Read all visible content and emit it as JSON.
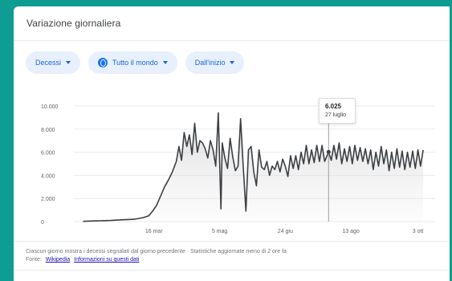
{
  "card": {
    "title": "Variazione giornaliera"
  },
  "filters": {
    "metric": "Decessi",
    "region": "Tutto il mondo",
    "period": "Dall'inizio"
  },
  "tooltip": {
    "value": "6.025",
    "date": "27 luglio"
  },
  "footnote": {
    "text": "Ciascun giorno mostra i decessi segnalati dal giorno precedente · Statistiche aggiornate meno di 2 ore fa",
    "source_label": "Fonte:",
    "source_link": "Wikipedia",
    "about_link": "Informazioni su questi dati"
  },
  "colors": {
    "accent": "#1a73e8",
    "chip_bg": "#e8f0fe",
    "line": "#3c4043",
    "page_bg": "#0f9c93"
  },
  "chart_data": {
    "type": "area",
    "title": "",
    "xlabel": "",
    "ylabel": "",
    "ylim": [
      0,
      10000
    ],
    "y_ticks": [
      0,
      2000,
      4000,
      6000,
      8000,
      10000
    ],
    "y_tick_labels": [
      "0",
      "2.000",
      "4.000",
      "6.000",
      "8.000",
      "10.000"
    ],
    "x_tick_labels": [
      "16 mar",
      "5 mag",
      "24 giu",
      "13 ago",
      "3 ott"
    ],
    "x_tick_dates": [
      "2020-03-16",
      "2020-05-05",
      "2020-06-24",
      "2020-08-13",
      "2020-10-03"
    ],
    "grid": true,
    "series": [
      {
        "name": "Decessi",
        "x": [
          "2020-01-22",
          "2020-02-01",
          "2020-02-12",
          "2020-02-20",
          "2020-03-01",
          "2020-03-08",
          "2020-03-12",
          "2020-03-15",
          "2020-03-18",
          "2020-03-21",
          "2020-03-24",
          "2020-03-27",
          "2020-03-30",
          "2020-04-02",
          "2020-04-04",
          "2020-04-06",
          "2020-04-08",
          "2020-04-10",
          "2020-04-12",
          "2020-04-14",
          "2020-04-16",
          "2020-04-18",
          "2020-04-20",
          "2020-04-22",
          "2020-04-24",
          "2020-04-26",
          "2020-04-28",
          "2020-04-30",
          "2020-05-02",
          "2020-05-04",
          "2020-05-06",
          "2020-05-07",
          "2020-05-09",
          "2020-05-11",
          "2020-05-13",
          "2020-05-15",
          "2020-05-17",
          "2020-05-19",
          "2020-05-21",
          "2020-05-23",
          "2020-05-25",
          "2020-05-27",
          "2020-05-29",
          "2020-05-31",
          "2020-06-02",
          "2020-06-04",
          "2020-06-06",
          "2020-06-08",
          "2020-06-10",
          "2020-06-12",
          "2020-06-14",
          "2020-06-16",
          "2020-06-18",
          "2020-06-20",
          "2020-06-22",
          "2020-06-24",
          "2020-06-26",
          "2020-06-28",
          "2020-06-30",
          "2020-07-02",
          "2020-07-04",
          "2020-07-06",
          "2020-07-08",
          "2020-07-10",
          "2020-07-12",
          "2020-07-14",
          "2020-07-16",
          "2020-07-18",
          "2020-07-20",
          "2020-07-22",
          "2020-07-24",
          "2020-07-27",
          "2020-07-29",
          "2020-07-31",
          "2020-08-02",
          "2020-08-04",
          "2020-08-06",
          "2020-08-08",
          "2020-08-10",
          "2020-08-12",
          "2020-08-14",
          "2020-08-16",
          "2020-08-18",
          "2020-08-20",
          "2020-08-22",
          "2020-08-24",
          "2020-08-26",
          "2020-08-28",
          "2020-08-30",
          "2020-09-01",
          "2020-09-03",
          "2020-09-05",
          "2020-09-07",
          "2020-09-09",
          "2020-09-11",
          "2020-09-13",
          "2020-09-15",
          "2020-09-17",
          "2020-09-19",
          "2020-09-21",
          "2020-09-23",
          "2020-09-25",
          "2020-09-27",
          "2020-09-29",
          "2020-10-01",
          "2020-10-03",
          "2020-10-05",
          "2020-10-07"
        ],
        "values": [
          20,
          60,
          100,
          150,
          200,
          350,
          500,
          900,
          1400,
          2200,
          3000,
          3600,
          4300,
          5200,
          6500,
          5300,
          7700,
          6500,
          7500,
          5800,
          8500,
          6000,
          7000,
          6800,
          6300,
          5500,
          7000,
          6200,
          4800,
          9400,
          1100,
          6800,
          5500,
          4600,
          7200,
          5600,
          4400,
          4800,
          8900,
          4700,
          900,
          6200,
          6500,
          4300,
          3100,
          6200,
          4700,
          4500,
          5200,
          4000,
          4800,
          4500,
          5200,
          4300,
          5400,
          4800,
          3900,
          5700,
          4600,
          5700,
          4500,
          6000,
          5000,
          6600,
          5000,
          6200,
          5100,
          6600,
          5200,
          6600,
          5200,
          6025,
          5300,
          6600,
          5400,
          6800,
          5000,
          6300,
          5200,
          6500,
          5000,
          6600,
          5300,
          6400,
          5200,
          6300,
          5000,
          6200,
          4500,
          6000,
          4800,
          6500,
          5000,
          6200,
          4400,
          6000,
          4600,
          6300,
          4700,
          6100,
          4500,
          6000,
          4700,
          6100,
          4600,
          6200,
          4800,
          6200
        ]
      }
    ],
    "highlight": {
      "x": "2020-07-27",
      "y": 6025
    }
  }
}
